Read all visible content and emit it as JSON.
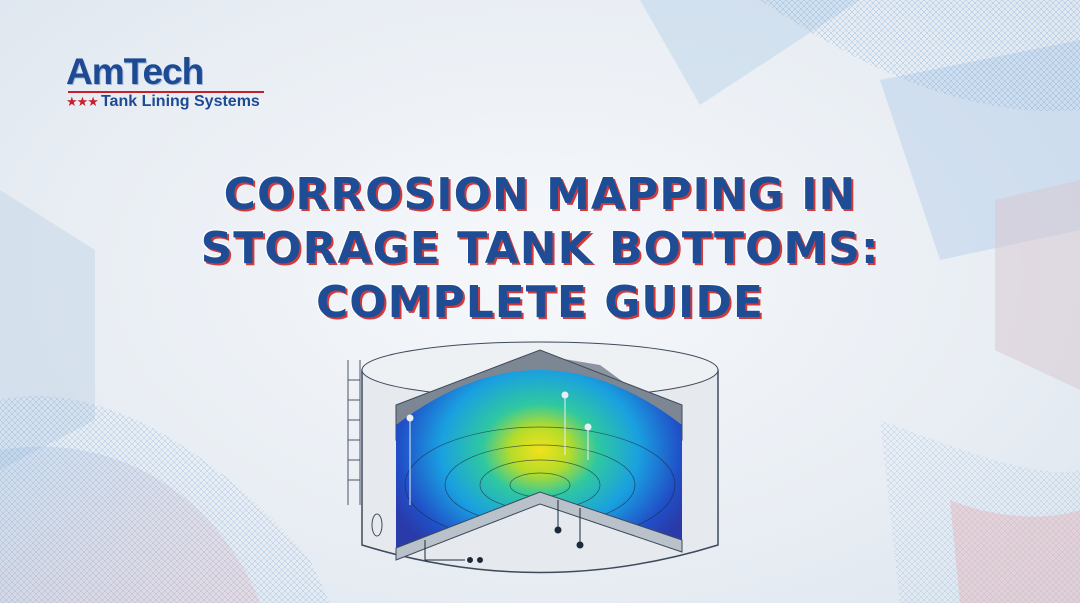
{
  "logo": {
    "brand": "AmTech",
    "stars": "★★★",
    "tagline": "Tank Lining Systems"
  },
  "title": {
    "lines": [
      "CORROSION MAPPING IN",
      "STORAGE TANK BOTTOMS:",
      "COMPLETE GUIDE"
    ]
  },
  "colors": {
    "title": "#1f4d95",
    "title_outline": "#d23a3a",
    "brand_blue": "#1e4a93",
    "brand_red": "#c8202b"
  },
  "illustration": {
    "icon": "storage-tank-cutaway-corrosion-heatmap"
  }
}
